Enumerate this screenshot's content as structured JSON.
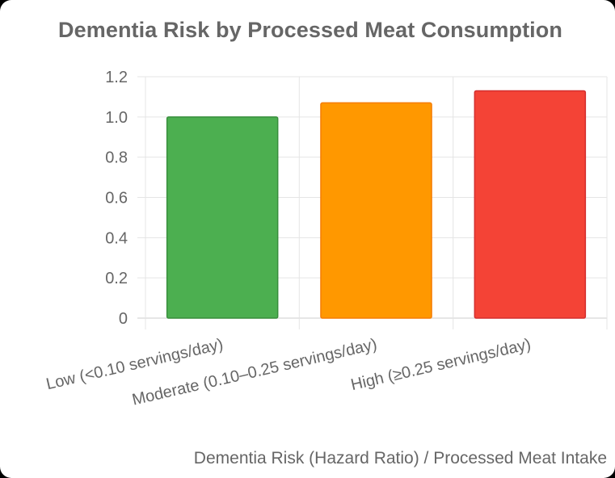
{
  "chart_data": {
    "type": "bar",
    "title": "Dementia Risk by Processed Meat Consumption",
    "categories": [
      "Low (<0.10 servings/day)",
      "Moderate (0.10–0.25 servings/day)",
      "High (≥0.25 servings/day)"
    ],
    "values": [
      1.0,
      1.07,
      1.13
    ],
    "colors": [
      "#4CAF50",
      "#FF9800",
      "#F44336"
    ],
    "border_colors": [
      "#388E3C",
      "#F57C00",
      "#D32F2F"
    ],
    "ylim": [
      0,
      1.2
    ],
    "yticks": [
      "0",
      "0.2",
      "0.4",
      "0.6",
      "0.8",
      "1.0",
      "1.2"
    ],
    "grid": true,
    "legend": "none",
    "xlabel": "Dementia Risk (Hazard Ratio) / Processed Meat Intake"
  }
}
